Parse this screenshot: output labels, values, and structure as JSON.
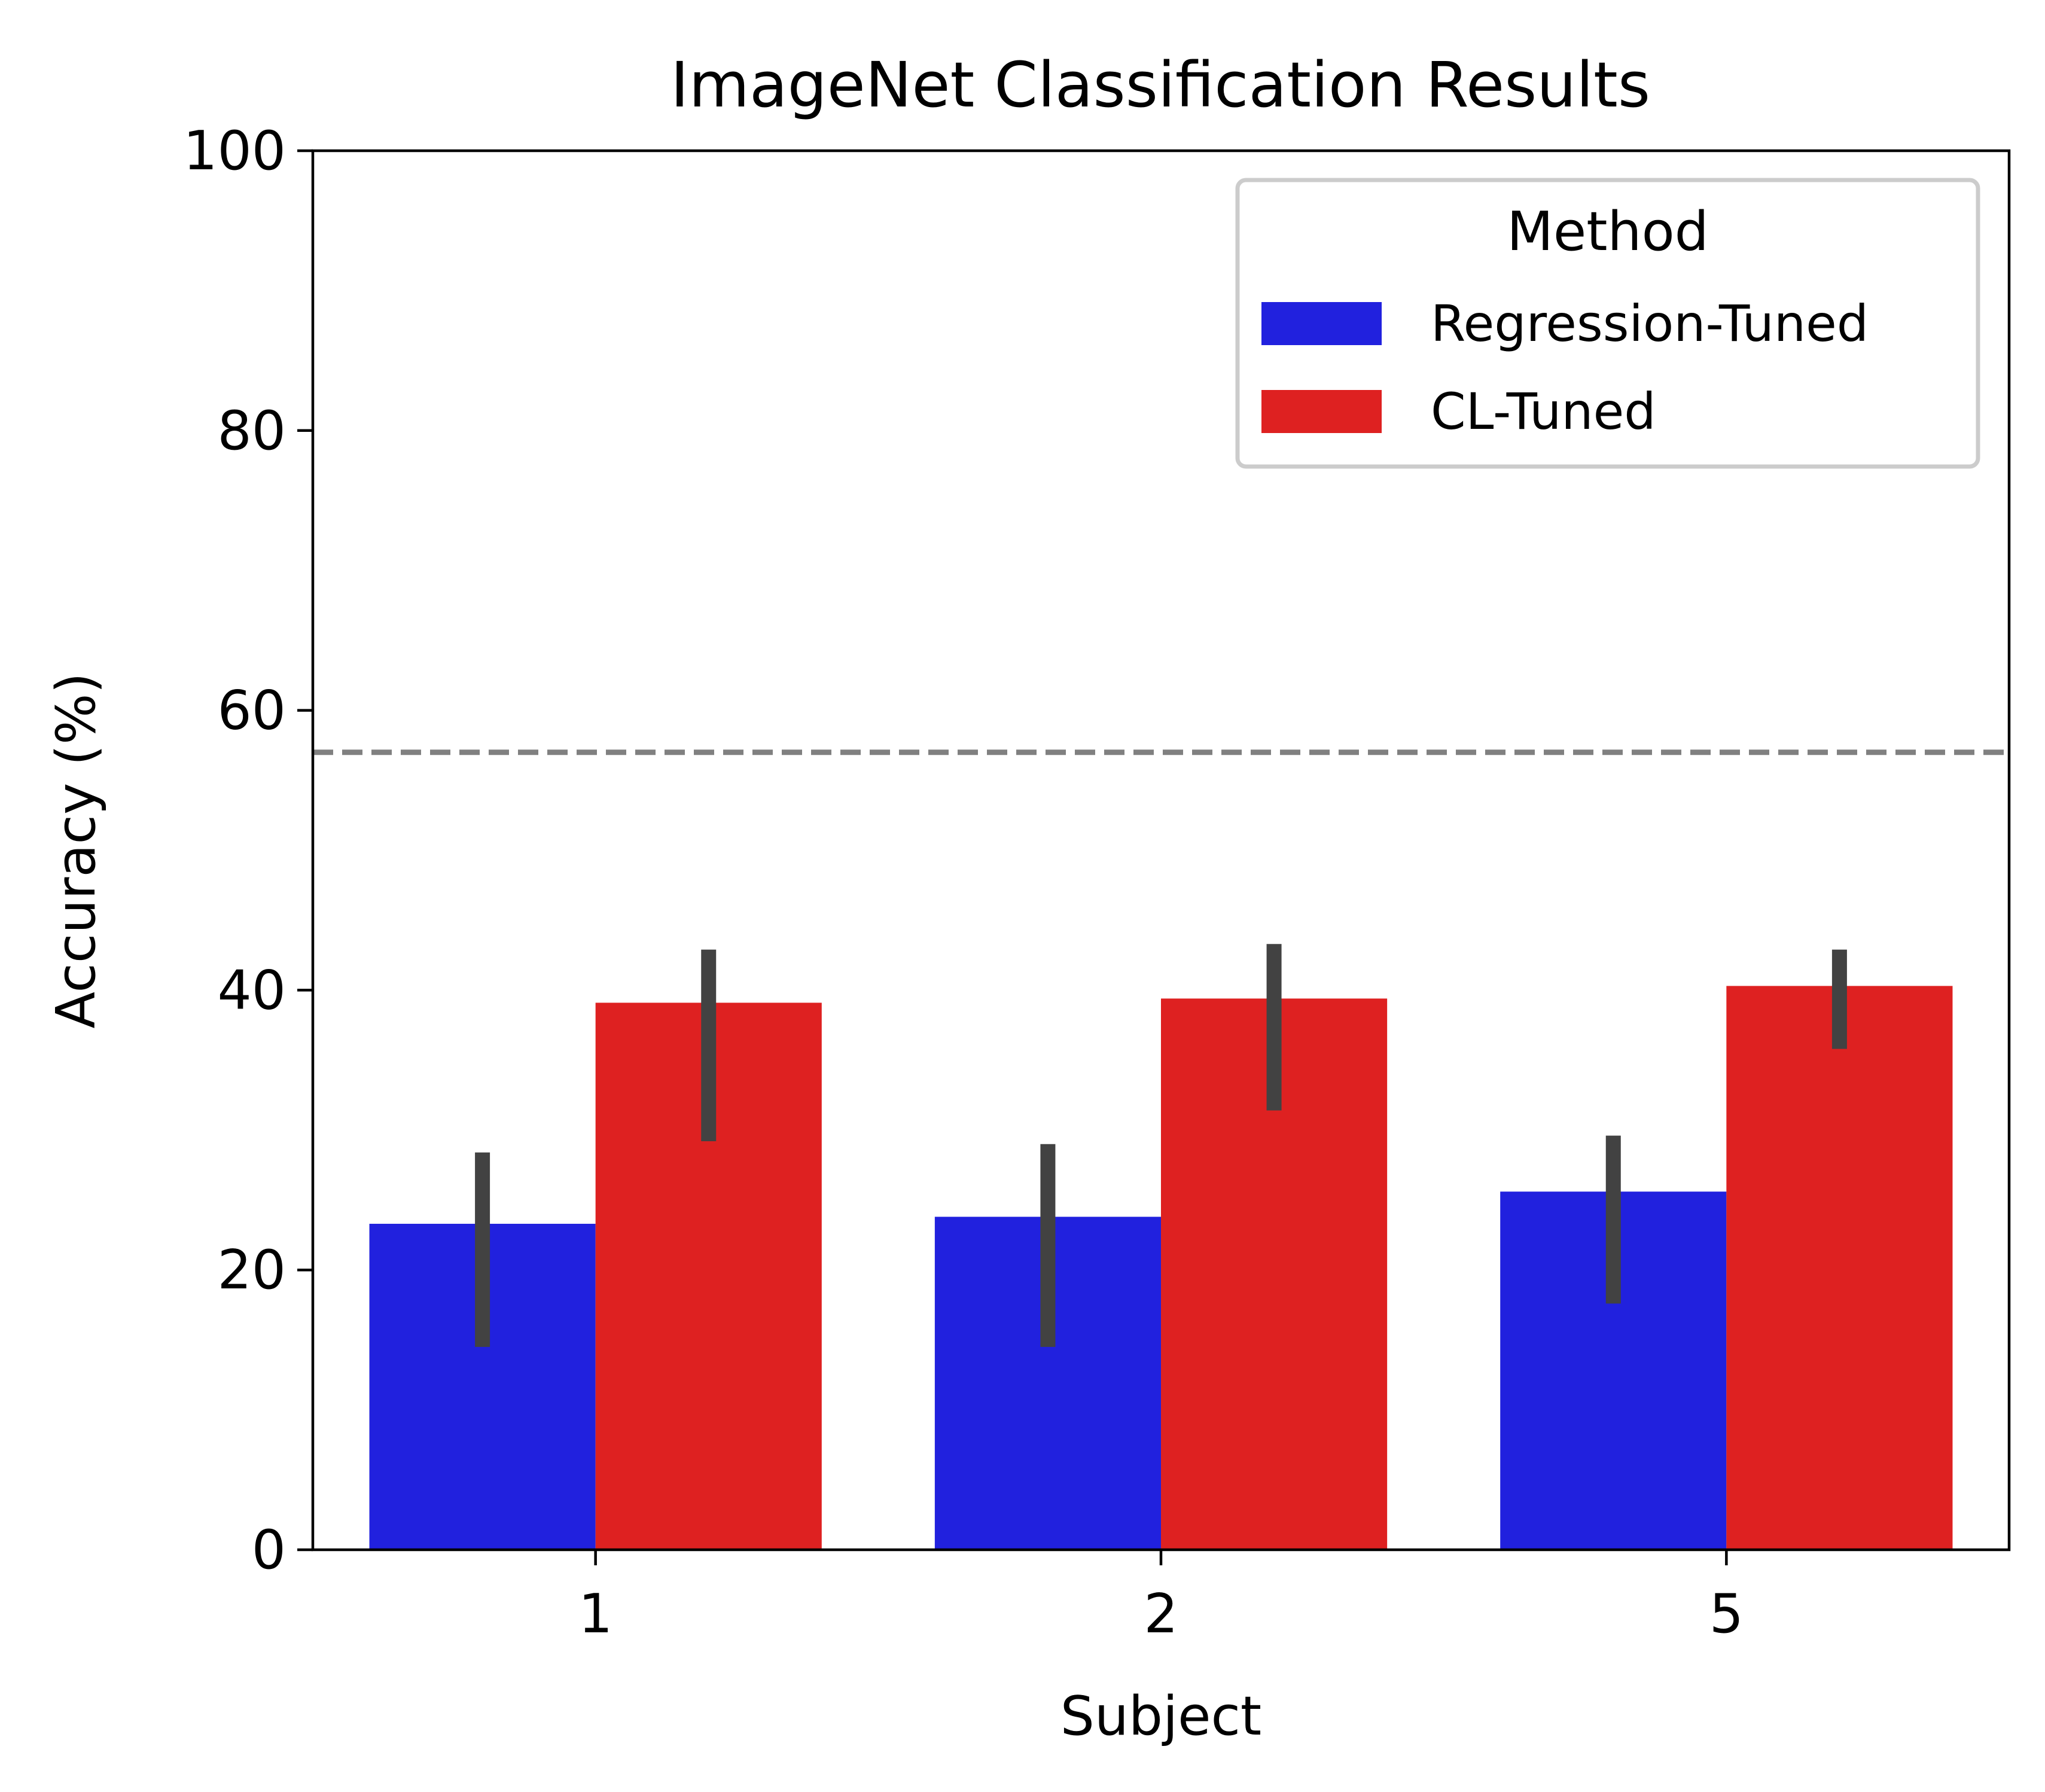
{
  "chart_data": {
    "type": "bar",
    "title": "ImageNet Classification Results",
    "xlabel": "Subject",
    "ylabel": "Accuracy (%)",
    "categories": [
      "1",
      "2",
      "5"
    ],
    "ylim": [
      0,
      100
    ],
    "yticks": [
      "0",
      "20",
      "40",
      "60",
      "80",
      "100"
    ],
    "grid": false,
    "legend": {
      "title": "Method",
      "placement": "top-right"
    },
    "series": [
      {
        "name": "Regression-Tuned",
        "color": "#2121de",
        "values": [
          23.3,
          23.8,
          25.6
        ],
        "error_low": [
          14.5,
          14.5,
          17.6
        ],
        "error_high": [
          28.4,
          29.0,
          29.6
        ]
      },
      {
        "name": "CL-Tuned",
        "color": "#de2121",
        "values": [
          39.1,
          39.4,
          40.3
        ],
        "error_low": [
          29.2,
          31.4,
          35.8
        ],
        "error_high": [
          42.9,
          43.3,
          42.9
        ]
      }
    ],
    "error_bar_color": "#424242",
    "reference_line": {
      "y": 57.0,
      "style": "dashed",
      "color": "#808080"
    }
  }
}
